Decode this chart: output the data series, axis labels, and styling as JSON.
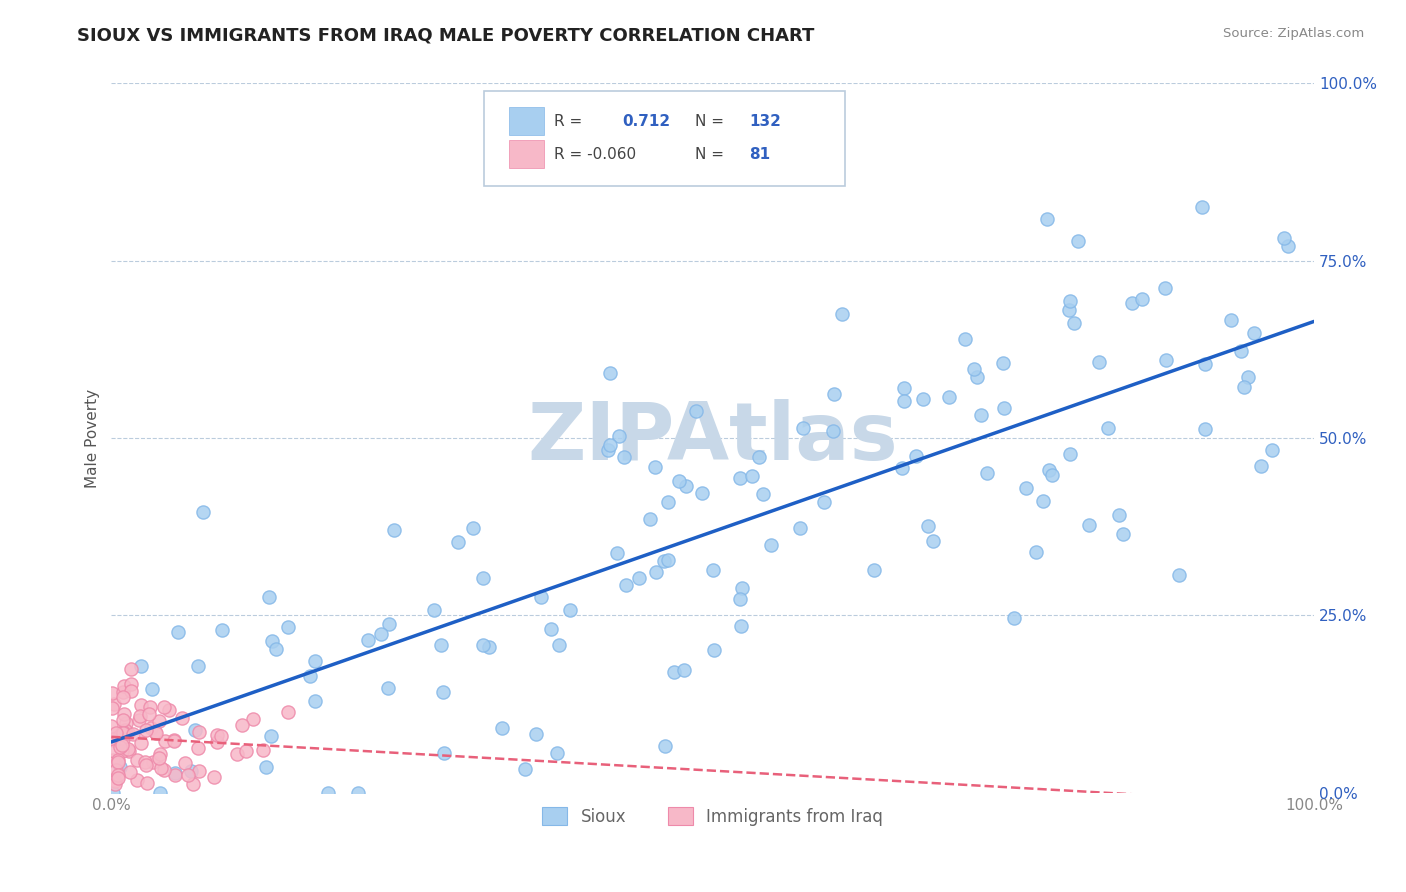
{
  "title": "SIOUX VS IMMIGRANTS FROM IRAQ MALE POVERTY CORRELATION CHART",
  "source": "Source: ZipAtlas.com",
  "ylabel": "Male Poverty",
  "y_tick_labels": [
    "0.0%",
    "25.0%",
    "50.0%",
    "75.0%",
    "100.0%"
  ],
  "y_tick_positions": [
    0,
    25,
    50,
    75,
    100
  ],
  "sioux_r": 0.712,
  "sioux_n": 132,
  "iraq_r": -0.06,
  "iraq_n": 81,
  "sioux_color": "#A8CFF0",
  "sioux_edge_color": "#85B8E8",
  "iraq_color": "#F7B8C8",
  "iraq_edge_color": "#EE8AAA",
  "sioux_line_color": "#1E5FC5",
  "iraq_line_color": "#E8607A",
  "background_color": "#FFFFFF",
  "plot_bg_color": "#FFFFFF",
  "watermark": "ZIPAtlas",
  "watermark_color": "#C8D8E8",
  "title_fontsize": 13,
  "legend_label_sioux": "Sioux",
  "legend_label_iraq": "Immigrants from Iraq",
  "grid_color": "#BBCCDD",
  "tick_color_y": "#3060C0",
  "tick_color_x": "#888888"
}
